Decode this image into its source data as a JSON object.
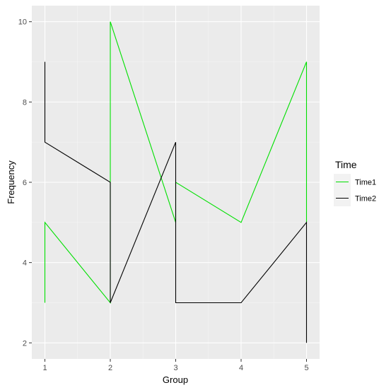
{
  "chart_data": {
    "type": "line",
    "xlabel": "Group",
    "ylabel": "Frequency",
    "x_ticks": [
      1,
      2,
      3,
      4,
      5
    ],
    "y_ticks": [
      2,
      4,
      6,
      8,
      10
    ],
    "xlim": [
      0.8,
      5.2
    ],
    "ylim": [
      1.6,
      10.4
    ],
    "grid": true,
    "legend": {
      "title": "Time",
      "position": "right"
    },
    "series": [
      {
        "name": "Time1",
        "color": "#00e000",
        "points": [
          [
            1,
            3
          ],
          [
            1,
            5
          ],
          [
            2,
            3
          ],
          [
            2,
            10
          ],
          [
            3,
            5
          ],
          [
            3,
            6
          ],
          [
            4,
            5
          ],
          [
            5,
            9
          ],
          [
            5,
            5
          ]
        ]
      },
      {
        "name": "Time2",
        "color": "#000000",
        "points": [
          [
            1,
            9
          ],
          [
            1,
            7
          ],
          [
            2,
            6
          ],
          [
            2,
            3
          ],
          [
            3,
            7
          ],
          [
            3,
            3
          ],
          [
            4,
            3
          ],
          [
            5,
            5
          ],
          [
            5,
            2
          ]
        ]
      }
    ]
  }
}
